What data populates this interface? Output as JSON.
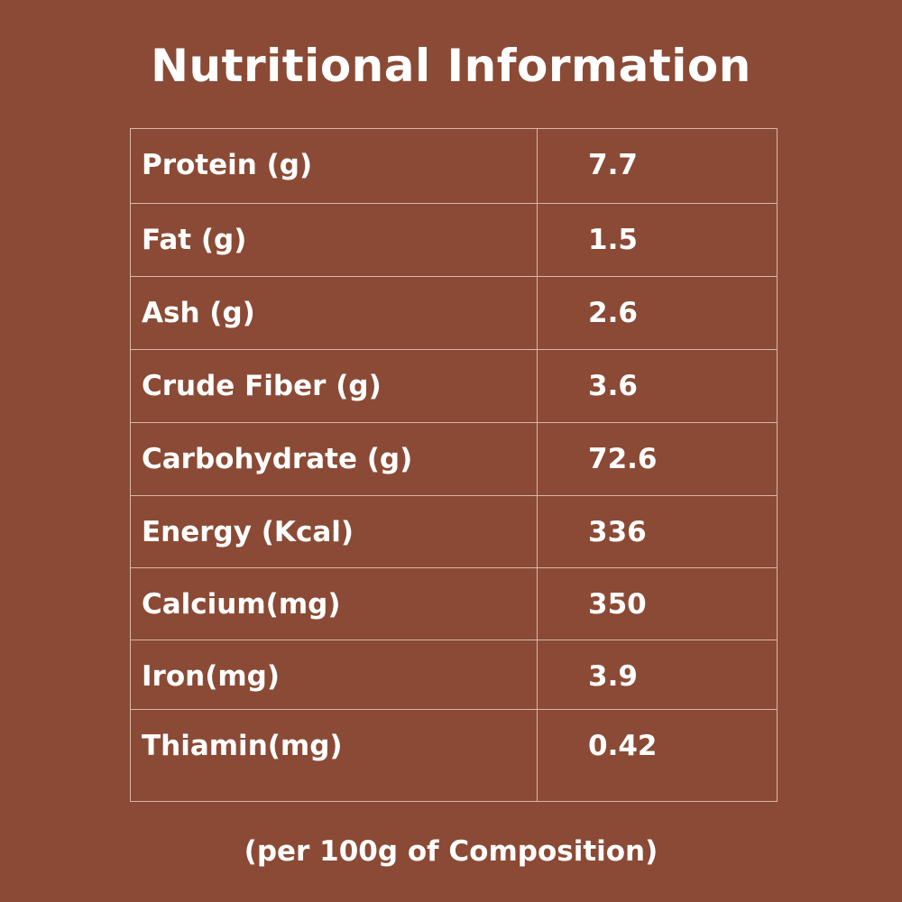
{
  "title": "Nutritional Information",
  "rows": [
    {
      "label": "Protein (g)",
      "value": "7.7"
    },
    {
      "label": "Fat (g)",
      "value": "1.5"
    },
    {
      "label": "Ash (g)",
      "value": "2.6"
    },
    {
      "label": "Crude Fiber (g)",
      "value": "3.6"
    },
    {
      "label": "Carbohydrate (g)",
      "value": "72.6"
    },
    {
      "label": "Energy (Kcal)",
      "value": "336"
    },
    {
      "label": "Calcium(mg)",
      "value": "350"
    },
    {
      "label": "Iron(mg)",
      "value": "3.9"
    },
    {
      "label": "Thiamin(mg)",
      "value": "0.42"
    }
  ],
  "footer": "(per 100g of Composition)",
  "colors": {
    "background": "#8b4a35",
    "text": "#ffffff",
    "border": "#d9b8a8"
  }
}
